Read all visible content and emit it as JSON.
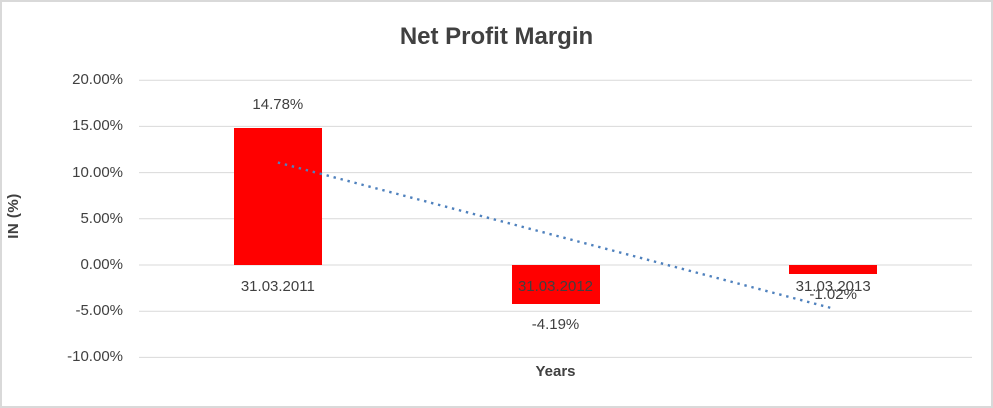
{
  "window": {
    "background": "#FFFFFF",
    "border_color": "#D9D9D9"
  },
  "chart_data": {
    "type": "bar",
    "title": "Net Profit Margin",
    "xlabel": "Years",
    "ylabel": "IN (%)",
    "categories": [
      "31.03.2011",
      "31.03.2012",
      "31.03.2013"
    ],
    "values": [
      14.78,
      -4.19,
      -1.02
    ],
    "value_labels": [
      "14.78%",
      "-4.19%",
      "-1.02%"
    ],
    "ylim": [
      -10,
      20
    ],
    "yticks": [
      20,
      15,
      10,
      5,
      0,
      -5,
      -10
    ],
    "ytick_labels": [
      "20.00%",
      "15.00%",
      "10.00%",
      "5.00%",
      "0.00%",
      "-5.00%",
      "-10.00%"
    ],
    "grid": true,
    "legend": "none",
    "bar_color": "#FF0000",
    "gridline_color": "#D9D9D9",
    "text_color": "#404040",
    "trendline": {
      "type": "linear",
      "style": "dotted",
      "color": "#4F81BD",
      "start_value": 11.09,
      "end_value": -4.71
    }
  }
}
